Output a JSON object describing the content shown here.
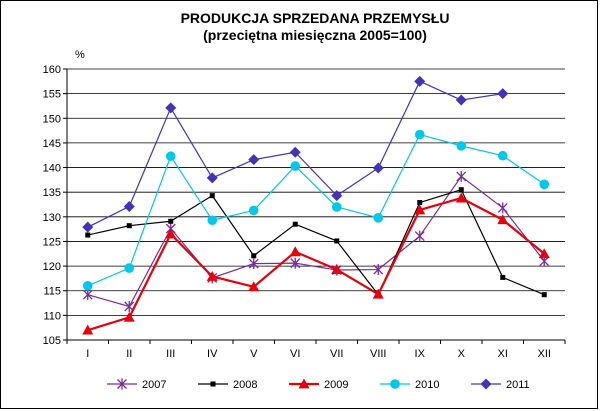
{
  "chart_data": {
    "type": "line",
    "title": "PRODUKCJA SPRZEDANA PRZEMYSŁU",
    "subtitle": "(przeciętna miesięczna 2005=100)",
    "ylabel": "%",
    "xlabel": "",
    "categories": [
      "I",
      "II",
      "III",
      "IV",
      "V",
      "VI",
      "VII",
      "VIII",
      "IX",
      "X",
      "XI",
      "XII"
    ],
    "yticks": [
      "105",
      "110",
      "115",
      "120",
      "125",
      "130",
      "135",
      "140",
      "145",
      "150",
      "155",
      "160"
    ],
    "ylim": [
      105,
      160
    ],
    "grid": true,
    "legend_position": "bottom",
    "series": [
      {
        "name": "2007",
        "color": "#7b2a9e",
        "marker": "star",
        "values": [
          114.2,
          111.8,
          127.6,
          117.6,
          120.5,
          120.6,
          119.2,
          119.3,
          126.1,
          138.2,
          131.8,
          121.0
        ]
      },
      {
        "name": "2008",
        "color": "#000000",
        "marker": "square",
        "values": [
          126.3,
          128.2,
          129.1,
          134.3,
          122.1,
          128.5,
          125.1,
          114.2,
          132.9,
          135.5,
          117.7,
          114.2
        ]
      },
      {
        "name": "2009",
        "color": "#e8000b",
        "marker": "triangle",
        "values": [
          107.0,
          109.6,
          126.5,
          117.9,
          115.8,
          122.9,
          119.3,
          114.3,
          131.4,
          133.8,
          129.4,
          122.5
        ]
      },
      {
        "name": "2010",
        "color": "#00c8e8",
        "marker": "circle",
        "values": [
          116.0,
          119.6,
          142.3,
          129.3,
          131.3,
          140.3,
          132.0,
          129.8,
          146.7,
          144.4,
          142.4,
          136.6
        ]
      },
      {
        "name": "2011",
        "color": "#4433b5",
        "marker": "diamond",
        "values": [
          127.9,
          132.1,
          152.1,
          137.9,
          141.6,
          143.1,
          134.3,
          139.9,
          157.5,
          153.7,
          155.0,
          null
        ]
      }
    ]
  }
}
